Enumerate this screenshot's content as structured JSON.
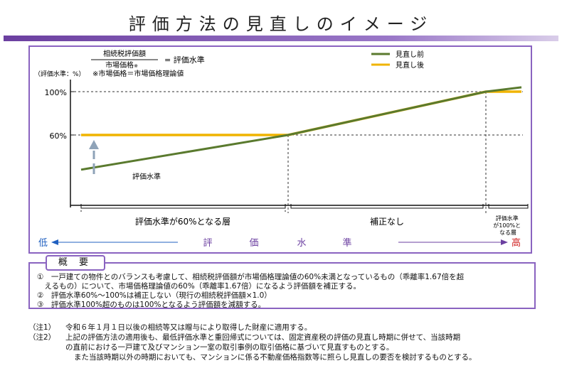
{
  "page": {
    "title": "評価方法の見直しのイメージ"
  },
  "colors": {
    "accent": "#8a63c0",
    "before": "#5a7a2e",
    "after": "#f0b400",
    "arrow": "#8fa3b8",
    "low": "#2060c0",
    "high": "#d02020",
    "scale": "#6b3fa0"
  },
  "formula": {
    "numerator": "相続税評価額",
    "denominator": "市場価格",
    "denominator_mark": "※",
    "result": "= 評価水準",
    "note": "※市場価格＝市場価格理論値",
    "y_unit": "（評価水準：%）"
  },
  "chart_data": {
    "type": "line",
    "ylabel": "（評価水準：%）",
    "yticks": [
      {
        "value": 100,
        "label": "100%"
      },
      {
        "value": 60,
        "label": "60%"
      }
    ],
    "series": [
      {
        "name": "見直し前",
        "points": [
          [
            0,
            28
          ],
          [
            1,
            60
          ],
          [
            2,
            100
          ],
          [
            2.2,
            104
          ]
        ]
      },
      {
        "name": "見直し後",
        "points": [
          [
            0,
            60
          ],
          [
            1,
            60
          ],
          [
            2,
            100
          ],
          [
            2.2,
            100
          ]
        ]
      }
    ],
    "annotation": "評価水準",
    "regions": [
      {
        "label": "評価水準が60%となる層"
      },
      {
        "label": "補正なし"
      },
      {
        "label": "評価水準が100%となる層",
        "lines": [
          "評価水準",
          "が100%と",
          "なる層"
        ]
      }
    ],
    "scale": {
      "low": "低",
      "high": "高",
      "label_chars": [
        "評",
        "価",
        "水",
        "準"
      ]
    }
  },
  "summary": {
    "tag": "概 要",
    "items": [
      "①　一戸建ての物件とのバランスも考慮して、相続税評価額が市場価格理論値の60%未満となっているもの（乖離率1.67倍を超",
      "　えるもの）について、市場価格理論値の60%（乖離率1.67倍）になるよう評価額を補正する。",
      "②　評価水準60%～100%は補正しない（現行の相続税評価額×1.0）",
      "③　評価水準100%超のものは100%となるよう評価額を減額する。"
    ]
  },
  "notes": [
    {
      "label": "（注1）",
      "text": "令和６年１月１日以後の相続等又は贈与により取得した財産に適用する。"
    },
    {
      "label": "（注2）",
      "text": "上記の評価方法の適用後も、最低評価水準と重回帰式については、固定資産税の評価の見直し時期に併せて、当該時期"
    },
    {
      "label": "",
      "text": "の直前における一戸建て及びマンション一室の取引事例の取引価格に基づいて見直すものとする。"
    },
    {
      "label": "",
      "text": "また当該時期以外の時期においても、マンションに係る不動産価格指数等に照らし見直しの要否を検討するものとする。"
    }
  ]
}
